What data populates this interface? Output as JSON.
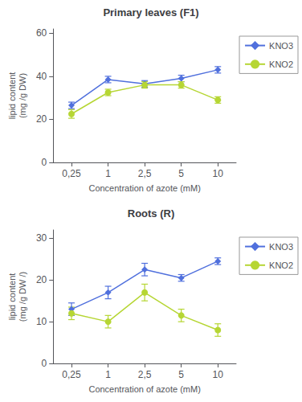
{
  "chart_data": [
    {
      "type": "line",
      "title": "Primary leaves (F1)",
      "xlabel": "Concentration of azote (mM)",
      "ylabel": "lipid content\n(mg /g DW)",
      "categories": [
        "0,25",
        "1",
        "2,5",
        "5",
        "10"
      ],
      "ylim": [
        0,
        62
      ],
      "yticks": [
        0,
        20,
        40,
        60
      ],
      "grid": false,
      "legend": "right",
      "series": [
        {
          "name": "KNO3",
          "values": [
            26.5,
            38.5,
            36.5,
            39.0,
            43.0
          ],
          "errors": [
            1.5,
            1.5,
            1.5,
            1.5,
            1.5
          ],
          "marker": "diamond",
          "line_style": "solid"
        },
        {
          "name": "KNO2",
          "values": [
            22.5,
            32.5,
            36.0,
            36.0,
            29.0
          ],
          "errors": [
            2.0,
            1.5,
            1.5,
            1.5,
            1.5
          ],
          "marker": "circle",
          "line_style": "solid"
        }
      ]
    },
    {
      "type": "line",
      "title": "Roots (R)",
      "xlabel": "Concentration of azote (mM)",
      "ylabel": "lipid content\n(mg /g DW /)",
      "categories": [
        "0,25",
        "1",
        "2,5",
        "5",
        "10"
      ],
      "ylim": [
        0,
        32
      ],
      "yticks": [
        0,
        10,
        20,
        30
      ],
      "grid": false,
      "legend": "right",
      "series": [
        {
          "name": "KNO3",
          "values": [
            13.0,
            17.0,
            22.5,
            20.5,
            24.5
          ],
          "errors": [
            1.5,
            1.5,
            1.5,
            0.8,
            0.8
          ],
          "marker": "diamond",
          "line_style": "solid"
        },
        {
          "name": "KNO2",
          "values": [
            12.0,
            10.0,
            17.0,
            11.5,
            8.0
          ],
          "errors": [
            1.5,
            1.5,
            2.0,
            1.5,
            1.5
          ],
          "marker": "circle",
          "line_style": "solid"
        }
      ]
    }
  ]
}
